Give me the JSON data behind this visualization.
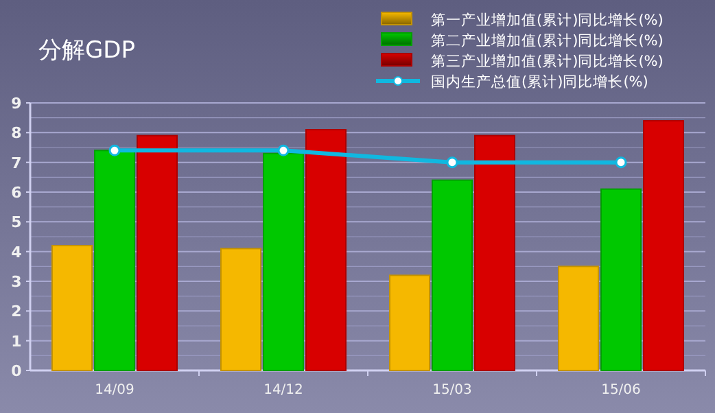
{
  "chart_data": {
    "type": "bar",
    "title": "分解GDP",
    "categories": [
      "14/09",
      "14/12",
      "15/03",
      "15/06"
    ],
    "series": [
      {
        "name": "第一产业增加值(累计)同比增长(%)",
        "color": "#f5b800",
        "values": [
          4.2,
          4.1,
          3.2,
          3.5
        ]
      },
      {
        "name": "第二产业增加值(累计)同比增长(%)",
        "color": "#00c800",
        "values": [
          7.4,
          7.3,
          6.4,
          6.1
        ]
      },
      {
        "name": "第三产业增加值(累计)同比增长(%)",
        "color": "#d80000",
        "values": [
          7.9,
          8.1,
          7.9,
          8.4
        ]
      },
      {
        "name": "国内生产总值(累计)同比增长(%)",
        "type": "line",
        "marker": "circle",
        "color": "#10b8e0",
        "values": [
          7.4,
          7.4,
          7.0,
          7.0
        ]
      }
    ],
    "ylim": [
      0,
      9
    ],
    "yticks": [
      0,
      1,
      2,
      3,
      4,
      5,
      6,
      7,
      8,
      9
    ],
    "grid": "y",
    "legend": "top right"
  }
}
